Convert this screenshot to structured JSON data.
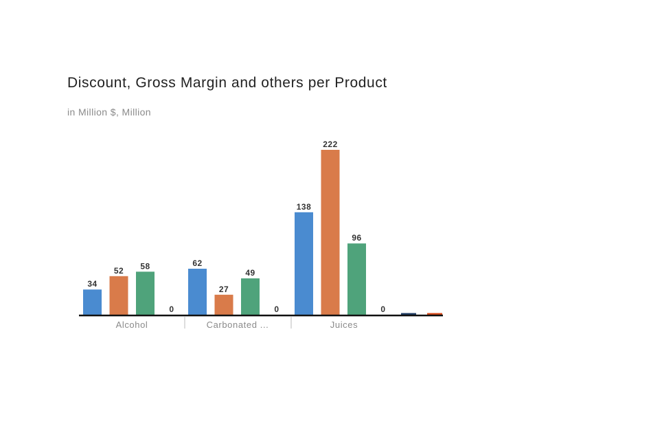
{
  "chart": {
    "title": "Discount, Gross Margin and others per Product",
    "subtitle": "in Million $, Million"
  },
  "chart_data": {
    "type": "bar",
    "title": "Discount, Gross Margin and others per Product",
    "subtitle": "in Million $, Million",
    "categories": [
      "Alcohol",
      "Carbonated ...",
      "Juices"
    ],
    "series": [
      {
        "color": "#4a8bd0",
        "values": [
          34,
          62,
          138
        ]
      },
      {
        "color": "#d97b4a",
        "values": [
          52,
          27,
          222
        ]
      },
      {
        "color": "#4fa37b",
        "values": [
          58,
          49,
          96
        ]
      },
      {
        "color": "#1f3d66",
        "values": [
          0,
          0,
          0
        ]
      }
    ],
    "partial_bars": [
      {
        "color": "#1f3d66",
        "value": 0
      },
      {
        "color": "#d94a1a",
        "value": 0
      }
    ],
    "ylim": [
      0,
      222
    ],
    "grid": false,
    "legend": "none"
  }
}
